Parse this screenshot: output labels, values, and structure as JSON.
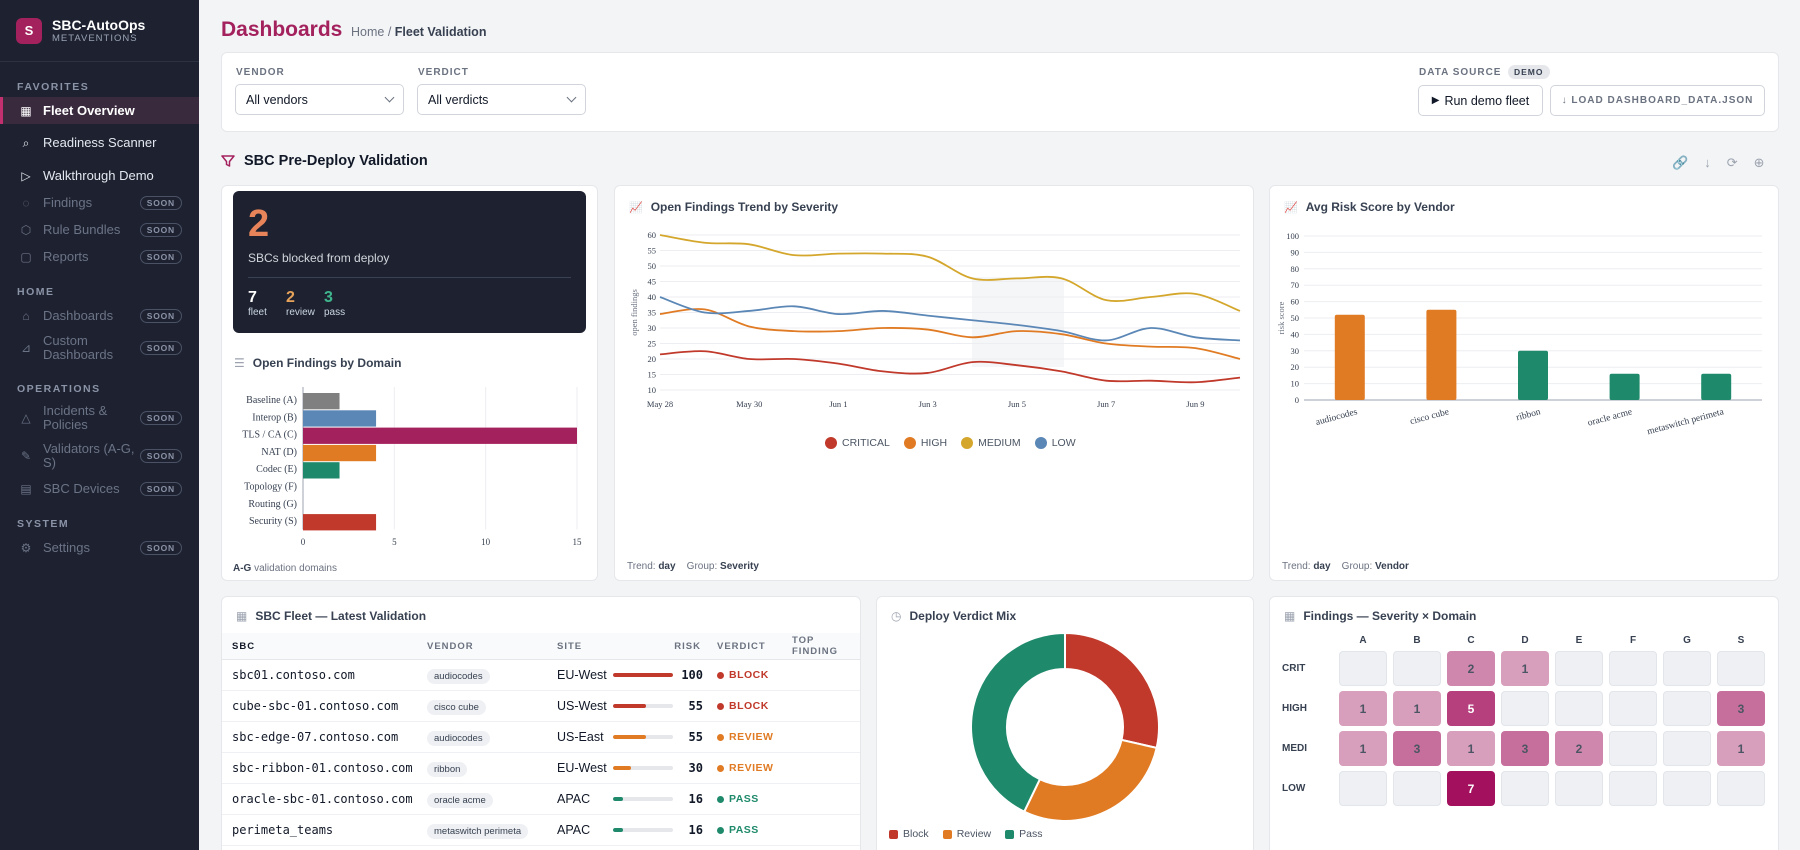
{
  "brand": {
    "logo_letter": "S",
    "name": "SBC-AutoOps",
    "sub": "METAVENTIONS"
  },
  "sidebar": {
    "sections": [
      {
        "title": "FAVORITES",
        "items": [
          {
            "label": "Fleet Overview",
            "icon": "grid-icon",
            "active": true
          },
          {
            "label": "Readiness Scanner",
            "icon": "search-icon"
          },
          {
            "label": "Walkthrough Demo",
            "icon": "play-icon"
          },
          {
            "label": "Findings",
            "icon": "check-circle-icon",
            "badge": "SOON"
          },
          {
            "label": "Rule Bundles",
            "icon": "shield-icon",
            "badge": "SOON"
          },
          {
            "label": "Reports",
            "icon": "document-icon",
            "badge": "SOON"
          }
        ]
      },
      {
        "title": "HOME",
        "items": [
          {
            "label": "Dashboards",
            "icon": "home-icon",
            "badge": "SOON"
          },
          {
            "label": "Custom Dashboards",
            "icon": "chart-icon",
            "badge": "SOON"
          }
        ]
      },
      {
        "title": "OPERATIONS",
        "items": [
          {
            "label": "Incidents & Policies",
            "icon": "warning-icon",
            "badge": "SOON"
          },
          {
            "label": "Validators (A-G, S)",
            "icon": "wrench-icon",
            "badge": "SOON"
          },
          {
            "label": "SBC Devices",
            "icon": "server-icon",
            "badge": "SOON"
          }
        ]
      },
      {
        "title": "SYSTEM",
        "items": [
          {
            "label": "Settings",
            "icon": "gear-icon",
            "badge": "SOON"
          }
        ]
      }
    ]
  },
  "header": {
    "title": "Dashboards",
    "breadcrumb_home": "Home",
    "breadcrumb_sep": " / ",
    "breadcrumb_current": "Fleet Validation"
  },
  "filters": {
    "vendor_label": "VENDOR",
    "vendor_value": "All vendors",
    "verdict_label": "VERDICT",
    "verdict_value": "All verdicts",
    "source_label": "DATA SOURCE",
    "source_badge": "DEMO",
    "run_button": "Run demo fleet",
    "load_button": "↓ LOAD DASHBOARD_DATA.JSON"
  },
  "section": {
    "title": "SBC Pre-Deploy Validation"
  },
  "kpi": {
    "big": "2",
    "sub": "SBCs blocked from deploy",
    "stats": [
      {
        "value": "7",
        "label": "fleet",
        "color": "#ffffff"
      },
      {
        "value": "2",
        "label": "review",
        "color": "#e8a35a"
      },
      {
        "value": "3",
        "label": "pass",
        "color": "#3fb78e"
      }
    ]
  },
  "domains_chart": {
    "title": "Open Findings by Domain",
    "foot_bold": "A-G",
    "foot_text": " validation domains",
    "chart_data": {
      "type": "bar",
      "orientation": "horizontal",
      "categories": [
        "Baseline (A)",
        "Interop (B)",
        "TLS / CA (C)",
        "NAT (D)",
        "Codec (E)",
        "Topology (F)",
        "Routing (G)",
        "Security (S)"
      ],
      "values": [
        2,
        4,
        15,
        4,
        2,
        0,
        0,
        4
      ],
      "colors": [
        "#808080",
        "#5b87b6",
        "#a3215d",
        "#e07b24",
        "#1f8a6b",
        "#808080",
        "#808080",
        "#c0392b"
      ],
      "xlim": [
        0,
        15
      ],
      "xticks": [
        "0",
        "5",
        "10",
        "15"
      ]
    }
  },
  "trend_chart": {
    "title": "Open Findings Trend by Severity",
    "foot_label": "Trend: ",
    "foot_trend": "day",
    "foot_group_label": "Group: ",
    "foot_group": "Severity",
    "chart_data": {
      "type": "line",
      "x": [
        "May 28",
        "May 29",
        "May 30",
        "May 31",
        "Jun 1",
        "Jun 2",
        "Jun 3",
        "Jun 4",
        "Jun 5",
        "Jun 6",
        "Jun 7",
        "Jun 8",
        "Jun 9",
        "Jun 10"
      ],
      "xticks": [
        "May 28",
        "May 30",
        "Jun 1",
        "Jun 3",
        "Jun 5",
        "Jun 7",
        "Jun 9"
      ],
      "ylabel": "open findings",
      "ylim": [
        10,
        60
      ],
      "yticks": [
        "10",
        "15",
        "20",
        "25",
        "30",
        "35",
        "40",
        "45",
        "50",
        "55",
        "60"
      ],
      "series": [
        {
          "name": "CRITICAL",
          "color": "#c0392b",
          "values": [
            21.5,
            22.5,
            20,
            20,
            18.5,
            16,
            15.5,
            19,
            18,
            16,
            13,
            13,
            12.5,
            14
          ]
        },
        {
          "name": "HIGH",
          "color": "#e07b24",
          "values": [
            34.5,
            36,
            30.5,
            29,
            29,
            30,
            29.5,
            27,
            29,
            28,
            25,
            24,
            23.5,
            20
          ]
        },
        {
          "name": "MEDIUM",
          "color": "#d4a72c",
          "values": [
            60,
            57.5,
            57,
            53.5,
            54,
            54,
            53,
            46,
            46,
            46,
            39,
            40,
            41,
            35.5
          ]
        },
        {
          "name": "LOW",
          "color": "#5b87b6",
          "values": [
            40,
            35,
            35.5,
            37,
            34.5,
            35.5,
            34,
            32.5,
            31,
            29,
            26,
            30,
            27,
            26
          ]
        }
      ]
    }
  },
  "risk_chart": {
    "title": "Avg Risk Score by Vendor",
    "foot_label": "Trend: ",
    "foot_trend": "day",
    "foot_group_label": "Group: ",
    "foot_group": "Vendor",
    "chart_data": {
      "type": "bar",
      "categories": [
        "audiocodes",
        "cisco cube",
        "ribbon",
        "oracle acme",
        "metaswitch perimeta"
      ],
      "values": [
        52,
        55,
        30,
        16,
        16
      ],
      "colors": [
        "#e07b24",
        "#e07b24",
        "#1f8a6b",
        "#1f8a6b",
        "#1f8a6b"
      ],
      "ylabel": "risk score",
      "ylim": [
        0,
        100
      ],
      "yticks": [
        "0",
        "10",
        "20",
        "30",
        "40",
        "50",
        "60",
        "70",
        "80",
        "90",
        "100"
      ]
    }
  },
  "fleet": {
    "title": "SBC Fleet — Latest Validation",
    "columns": {
      "sbc": "SBC",
      "vendor": "VENDOR",
      "site": "SITE",
      "risk": "RISK",
      "verdict": "VERDICT",
      "top": "TOP FINDING"
    },
    "rows": [
      {
        "sbc": "sbc01.contoso.com",
        "vendor": "audiocodes",
        "site": "EU-West",
        "risk": 100,
        "risk_label": "100",
        "verdict": "BLOCK",
        "color": "#c0392b"
      },
      {
        "sbc": "cube-sbc-01.contoso.com",
        "vendor": "cisco cube",
        "site": "US-West",
        "risk": 55,
        "risk_label": "55",
        "verdict": "BLOCK",
        "color": "#c0392b"
      },
      {
        "sbc": "sbc-edge-07.contoso.com",
        "vendor": "audiocodes",
        "site": "US-East",
        "risk": 55,
        "risk_label": "55",
        "verdict": "REVIEW",
        "color": "#e07b24"
      },
      {
        "sbc": "sbc-ribbon-01.contoso.com",
        "vendor": "ribbon",
        "site": "EU-West",
        "risk": 30,
        "risk_label": "30",
        "verdict": "REVIEW",
        "color": "#e07b24"
      },
      {
        "sbc": "oracle-sbc-01.contoso.com",
        "vendor": "oracle acme",
        "site": "APAC",
        "risk": 16,
        "risk_label": "16",
        "verdict": "PASS",
        "color": "#1f8a6b"
      },
      {
        "sbc": "perimeta_teams",
        "vendor": "metaswitch perimeta",
        "site": "APAC",
        "risk": 16,
        "risk_label": "16",
        "verdict": "PASS",
        "color": "#1f8a6b"
      }
    ]
  },
  "verdict_chart": {
    "title": "Deploy Verdict Mix",
    "chart_data": {
      "type": "pie",
      "donut": true,
      "labels": [
        "Block",
        "Review",
        "Pass"
      ],
      "values": [
        2,
        2,
        3
      ],
      "colors": [
        "#c0392b",
        "#e07b24",
        "#1f8a6b"
      ]
    }
  },
  "heatmap": {
    "title": "Findings — Severity × Domain",
    "chart_data": {
      "type": "heatmap",
      "columns": [
        "A",
        "B",
        "C",
        "D",
        "E",
        "F",
        "G",
        "S"
      ],
      "rows": [
        "CRIT",
        "HIGH",
        "MEDI",
        "LOW"
      ],
      "values": [
        [
          0,
          0,
          2,
          1,
          0,
          0,
          0,
          0
        ],
        [
          1,
          1,
          5,
          0,
          0,
          0,
          0,
          3
        ],
        [
          1,
          3,
          1,
          3,
          2,
          0,
          0,
          1
        ],
        [
          0,
          0,
          7,
          0,
          0,
          0,
          0,
          0
        ]
      ]
    }
  }
}
